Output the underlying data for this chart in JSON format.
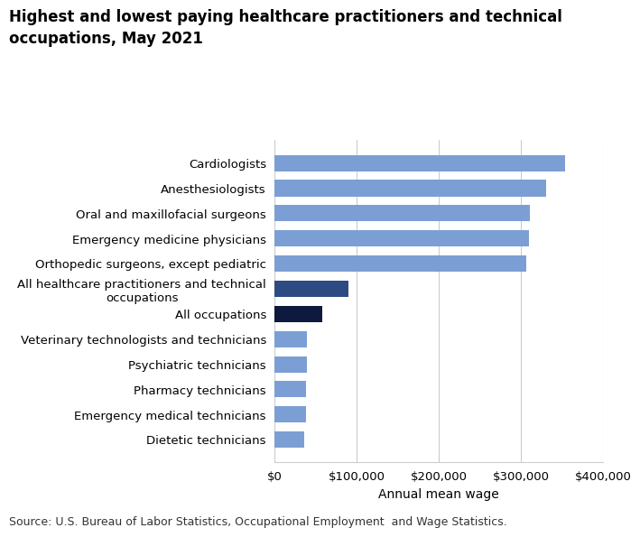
{
  "title": "Highest and lowest paying healthcare practitioners and technical\noccupations, May 2021",
  "categories": [
    "Dietetic technicians",
    "Emergency medical technicians",
    "Pharmacy technicians",
    "Psychiatric technicians",
    "Veterinary technologists and technicians",
    "All occupations",
    "All healthcare practitioners and technical\noccupations",
    "Orthopedic surgeons, except pediatric",
    "Emergency medicine physicians",
    "Oral and maxillofacial surgeons",
    "Anesthesiologists",
    "Cardiologists"
  ],
  "values": [
    36000,
    38000,
    38000,
    40000,
    40000,
    58260,
    90000,
    306220,
    310000,
    311460,
    331190,
    353970
  ],
  "bar_colors": [
    "#7b9fd4",
    "#7b9fd4",
    "#7b9fd4",
    "#7b9fd4",
    "#7b9fd4",
    "#0d1a3d",
    "#2d4a82",
    "#7b9fd4",
    "#7b9fd4",
    "#7b9fd4",
    "#7b9fd4",
    "#7b9fd4"
  ],
  "xlabel": "Annual mean wage",
  "xlim": [
    0,
    400000
  ],
  "xticks": [
    0,
    100000,
    200000,
    300000,
    400000
  ],
  "xtick_labels": [
    "$0",
    "$100,000",
    "$200,000",
    "$300,000",
    "$400,000"
  ],
  "source": "Source: U.S. Bureau of Labor Statistics, Occupational Employment  and Wage Statistics.",
  "background_color": "#ffffff",
  "title_fontsize": 12,
  "label_fontsize": 9.5,
  "tick_fontsize": 9.5,
  "xlabel_fontsize": 10,
  "source_fontsize": 9
}
